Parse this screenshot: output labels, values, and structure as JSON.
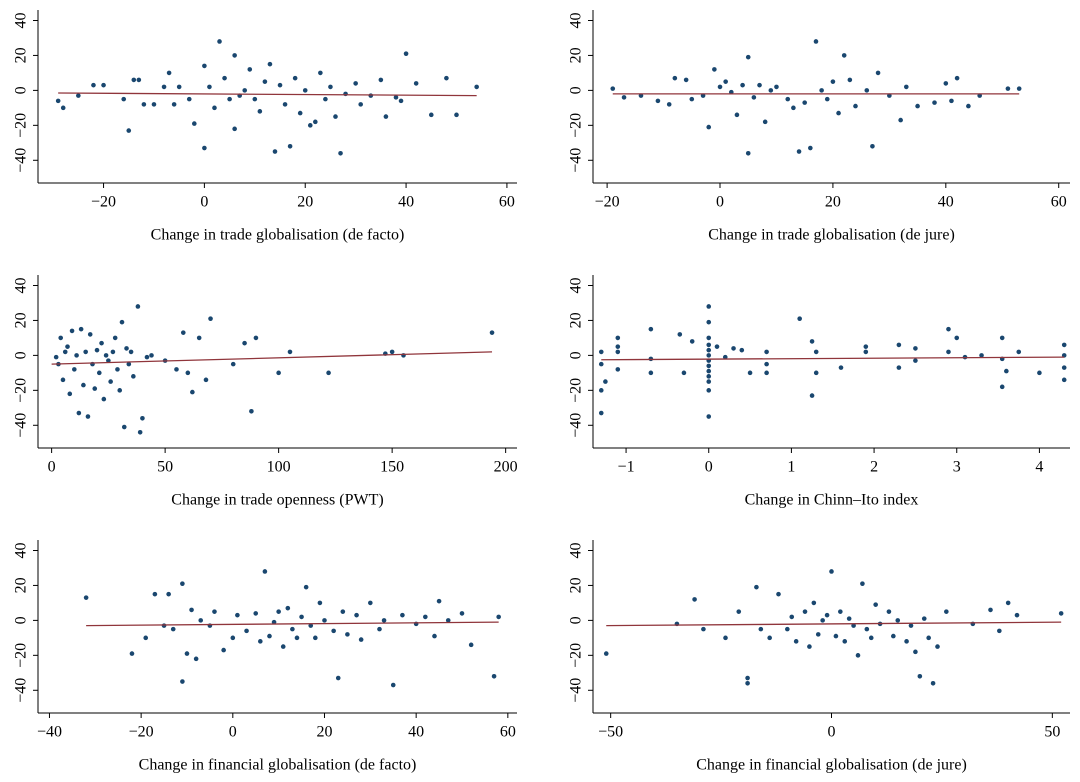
{
  "chart_data": [
    {
      "type": "scatter",
      "x_label": "Change in trade globalisation (de facto)",
      "color": "#1a476f",
      "xlim": [
        -33,
        62
      ],
      "xticks": [
        {
          "value": -20,
          "label": "−20"
        },
        0,
        20,
        40,
        60
      ],
      "ylim": [
        -53,
        46
      ],
      "yticks": [
        {
          "value": -40,
          "label": "−40"
        },
        {
          "value": -20,
          "label": "−20"
        },
        0,
        20,
        40
      ],
      "x": [
        -29,
        -28,
        -25,
        -22,
        -20,
        -16,
        -15,
        -14,
        -13,
        -12,
        -10,
        -8,
        -7,
        -6,
        -5,
        -3,
        -2,
        0,
        0,
        1,
        2,
        3,
        4,
        5,
        6,
        6,
        7,
        8,
        9,
        10,
        11,
        12,
        13,
        14,
        15,
        16,
        17,
        18,
        19,
        20,
        21,
        22,
        23,
        24,
        25,
        26,
        27,
        28,
        30,
        31,
        33,
        35,
        36,
        38,
        39,
        40,
        42,
        45,
        48,
        50,
        54
      ],
      "values": [
        -6,
        -10,
        -3,
        3,
        3,
        -5,
        -23,
        6,
        6,
        -8,
        -8,
        2,
        10,
        -8,
        2,
        -5,
        -19,
        -33,
        14,
        2,
        -10,
        28,
        7,
        -5,
        -22,
        20,
        -3,
        0,
        12,
        -5,
        -12,
        5,
        15,
        -35,
        3,
        -8,
        -32,
        7,
        -13,
        0,
        -20,
        -18,
        10,
        -5,
        2,
        -15,
        -36,
        -2,
        4,
        -8,
        -3,
        6,
        -15,
        -4,
        -6,
        21,
        4,
        -14,
        7,
        -14,
        2
      ],
      "fit": {
        "color": "#90353b",
        "x": [
          -29,
          54
        ],
        "values": [
          -1.5,
          -3
        ]
      }
    },
    {
      "type": "scatter",
      "x_label": "Change in trade globalisation (de jure)",
      "color": "#1a476f",
      "xlim": [
        -22.5,
        62
      ],
      "xticks": [
        {
          "value": -20,
          "label": "−20"
        },
        0,
        20,
        40,
        60
      ],
      "ylim": [
        -53,
        46
      ],
      "yticks": [
        {
          "value": -40,
          "label": "−40"
        },
        {
          "value": -20,
          "label": "−20"
        },
        0,
        20,
        40
      ],
      "x": [
        -19,
        -17,
        -14,
        -11,
        -9,
        -8,
        -6,
        -5,
        -3,
        -2,
        -1,
        0,
        1,
        2,
        3,
        4,
        5,
        5,
        6,
        7,
        8,
        9,
        10,
        12,
        13,
        14,
        15,
        16,
        17,
        18,
        19,
        20,
        21,
        22,
        23,
        24,
        26,
        27,
        28,
        30,
        32,
        33,
        35,
        38,
        40,
        41,
        42,
        44,
        46,
        51,
        53
      ],
      "values": [
        1,
        -4,
        -3,
        -6,
        -8,
        7,
        6,
        -5,
        -3,
        -21,
        12,
        2,
        5,
        -1,
        -14,
        3,
        -36,
        19,
        -4,
        3,
        -18,
        0,
        2,
        -5,
        -10,
        -35,
        -7,
        -33,
        28,
        0,
        -5,
        5,
        -13,
        20,
        6,
        -9,
        0,
        -32,
        10,
        -3,
        -17,
        2,
        -9,
        -7,
        4,
        -6,
        7,
        -9,
        -3,
        1,
        1
      ],
      "fit": {
        "color": "#90353b",
        "x": [
          -19,
          53
        ],
        "values": [
          -2,
          -2
        ]
      }
    },
    {
      "type": "scatter",
      "x_label": "Change in trade openness (PWT)",
      "color": "#1a476f",
      "xlim": [
        -6,
        205
      ],
      "xticks": [
        0,
        50,
        100,
        150,
        200
      ],
      "ylim": [
        -53,
        46
      ],
      "yticks": [
        {
          "value": -40,
          "label": "−40"
        },
        {
          "value": -20,
          "label": "−20"
        },
        0,
        20,
        40
      ],
      "x": [
        2,
        3,
        4,
        5,
        6,
        7,
        8,
        9,
        10,
        11,
        12,
        13,
        14,
        15,
        16,
        17,
        18,
        19,
        20,
        21,
        22,
        23,
        24,
        25,
        26,
        27,
        28,
        29,
        30,
        31,
        32,
        33,
        34,
        35,
        36,
        38,
        39,
        40,
        42,
        44,
        50,
        55,
        58,
        60,
        62,
        65,
        68,
        70,
        80,
        85,
        88,
        90,
        100,
        105,
        122,
        147,
        150,
        155,
        194
      ],
      "values": [
        -1,
        -5,
        10,
        -14,
        2,
        5,
        -22,
        14,
        -8,
        0,
        -33,
        15,
        -17,
        2,
        -35,
        12,
        -5,
        -19,
        3,
        -10,
        7,
        -25,
        0,
        -3,
        -15,
        2,
        10,
        -8,
        -20,
        19,
        -41,
        4,
        -5,
        2,
        -12,
        28,
        -44,
        -36,
        -1,
        0,
        -3,
        -8,
        13,
        -10,
        -21,
        10,
        -14,
        21,
        -5,
        7,
        -32,
        10,
        -10,
        2,
        -10,
        1,
        2,
        0,
        13
      ],
      "fit": {
        "color": "#90353b",
        "x": [
          0,
          194
        ],
        "values": [
          -5,
          2
        ]
      }
    },
    {
      "type": "scatter",
      "x_label": "Change in Chinn–Ito index",
      "color": "#1a476f",
      "xlim": [
        -1.4,
        4.37
      ],
      "xticks": [
        {
          "value": -1,
          "label": "−1"
        },
        0,
        1,
        2,
        3,
        4
      ],
      "ylim": [
        -53,
        46
      ],
      "yticks": [
        {
          "value": -40,
          "label": "−40"
        },
        {
          "value": -20,
          "label": "−20"
        },
        0,
        20,
        40
      ],
      "x": [
        -1.3,
        -1.3,
        -1.3,
        -1.3,
        -1.25,
        -1.1,
        -1.1,
        -1.1,
        -1.1,
        -0.7,
        -0.7,
        -0.7,
        -0.35,
        -0.3,
        -0.2,
        0,
        0,
        0,
        0,
        0,
        0,
        0,
        0,
        0,
        0,
        0,
        0,
        0,
        0.1,
        0.2,
        0.3,
        0.4,
        0.5,
        0.7,
        0.7,
        0.7,
        1.1,
        1.25,
        1.25,
        1.3,
        1.3,
        1.6,
        1.9,
        1.9,
        2.3,
        2.3,
        2.5,
        2.5,
        2.9,
        2.9,
        3.0,
        3.1,
        3.3,
        3.55,
        3.55,
        3.55,
        3.6,
        3.75,
        4.0,
        4.3,
        4.3,
        4.3,
        4.3
      ],
      "values": [
        -33,
        -20,
        -5,
        2,
        -15,
        10,
        2,
        -8,
        5,
        15,
        -2,
        -10,
        12,
        -10,
        8,
        28,
        19,
        10,
        6,
        3,
        0,
        -3,
        -6,
        -9,
        -12,
        -15,
        -20,
        -35,
        5,
        -1,
        4,
        3,
        -10,
        2,
        -5,
        -10,
        21,
        8,
        -23,
        2,
        -10,
        -7,
        5,
        2,
        6,
        -7,
        4,
        -3,
        15,
        2,
        10,
        -1,
        0,
        10,
        -2,
        -18,
        -9,
        2,
        -10,
        6,
        0,
        -7,
        -14
      ],
      "fit": {
        "color": "#90353b",
        "x": [
          -1.3,
          4.3
        ],
        "values": [
          -2.5,
          -1
        ]
      }
    },
    {
      "type": "scatter",
      "x_label": "Change in financial globalisation (de facto)",
      "color": "#1a476f",
      "xlim": [
        -42.5,
        62
      ],
      "xticks": [
        {
          "value": -40,
          "label": "−40"
        },
        {
          "value": -20,
          "label": "−20"
        },
        0,
        20,
        40,
        60
      ],
      "ylim": [
        -53,
        46
      ],
      "yticks": [
        {
          "value": -40,
          "label": "−40"
        },
        {
          "value": -20,
          "label": "−20"
        },
        0,
        20,
        40
      ],
      "x": [
        -32,
        -22,
        -19,
        -17,
        -15,
        -14,
        -13,
        -11,
        -11,
        -10,
        -9,
        -8,
        -7,
        -5,
        -4,
        -2,
        0,
        1,
        3,
        5,
        6,
        7,
        8,
        9,
        10,
        11,
        12,
        13,
        14,
        15,
        16,
        17,
        18,
        19,
        20,
        22,
        23,
        24,
        25,
        27,
        28,
        30,
        32,
        33,
        35,
        37,
        40,
        42,
        44,
        45,
        47,
        50,
        52,
        57,
        58
      ],
      "values": [
        13,
        -19,
        -10,
        15,
        -3,
        15,
        -5,
        -35,
        21,
        -19,
        6,
        -22,
        0,
        -3,
        5,
        -17,
        -10,
        3,
        -6,
        4,
        -12,
        28,
        -9,
        -1,
        5,
        -15,
        7,
        -5,
        -10,
        2,
        19,
        -3,
        -10,
        10,
        0,
        -6,
        -33,
        5,
        -8,
        3,
        -11,
        10,
        -5,
        0,
        -37,
        3,
        -2,
        2,
        -9,
        11,
        0,
        4,
        -14,
        -32,
        2
      ],
      "fit": {
        "color": "#90353b",
        "x": [
          -32,
          58
        ],
        "values": [
          -3,
          -1
        ]
      }
    },
    {
      "type": "scatter",
      "x_label": "Change in financial globalisation (de jure)",
      "color": "#1a476f",
      "xlim": [
        -54,
        54
      ],
      "xticks": [
        {
          "value": -50,
          "label": "−50"
        },
        0,
        50
      ],
      "ylim": [
        -53,
        46
      ],
      "yticks": [
        {
          "value": -40,
          "label": "−40"
        },
        {
          "value": -20,
          "label": "−20"
        },
        0,
        20,
        40
      ],
      "x": [
        -51,
        -35,
        -31,
        -29,
        -24,
        -21,
        -19,
        -19,
        -17,
        -16,
        -14,
        -12,
        -10,
        -9,
        -8,
        -6,
        -5,
        -4,
        -3,
        -2,
        -1,
        0,
        1,
        2,
        3,
        4,
        5,
        6,
        7,
        8,
        9,
        10,
        11,
        13,
        14,
        15,
        17,
        18,
        19,
        20,
        21,
        22,
        23,
        24,
        26,
        32,
        36,
        38,
        40,
        42,
        52
      ],
      "values": [
        -19,
        -2,
        12,
        -5,
        -10,
        5,
        -33,
        -36,
        19,
        -5,
        -10,
        15,
        -5,
        2,
        -12,
        5,
        -15,
        10,
        -8,
        0,
        3,
        28,
        -9,
        5,
        -12,
        1,
        -3,
        -20,
        21,
        -5,
        -10,
        9,
        -2,
        5,
        -9,
        0,
        -12,
        -3,
        -18,
        -32,
        1,
        -10,
        -36,
        -15,
        5,
        -2,
        6,
        -6,
        10,
        3,
        4
      ],
      "fit": {
        "color": "#90353b",
        "x": [
          -51,
          52
        ],
        "values": [
          -3,
          -1
        ]
      }
    }
  ]
}
